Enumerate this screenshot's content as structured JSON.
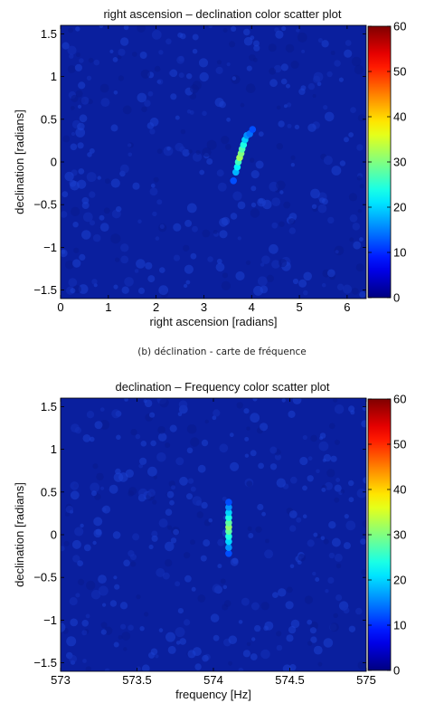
{
  "caption": "(b) déclination - carte de fréquence",
  "colormap": "jet",
  "background_color": "#0a1f9e",
  "chart_data": [
    {
      "type": "scatter",
      "title": "right ascension – declination color scatter plot",
      "xlabel": "right ascension [radians]",
      "ylabel": "declination [radians]",
      "xlim": [
        0,
        6.4
      ],
      "ylim": [
        -1.6,
        1.6
      ],
      "xticks": [
        0,
        1,
        2,
        3,
        4,
        5,
        6
      ],
      "xtick_labels": [
        "0",
        "1",
        "2",
        "3",
        "4",
        "5",
        "6"
      ],
      "yticks": [
        -1.5,
        -1,
        -0.5,
        0,
        0.5,
        1,
        1.5
      ],
      "ytick_labels": [
        "−1.5",
        "−1",
        "−0.5",
        "0",
        "0.5",
        "1",
        "1.5"
      ],
      "colorbar": {
        "range": [
          0,
          60
        ],
        "ticks": [
          0,
          10,
          20,
          30,
          40,
          50,
          60
        ],
        "tick_labels": [
          "0",
          "10",
          "20",
          "30",
          "40",
          "50",
          "60"
        ]
      },
      "points": [
        {
          "x": 3.62,
          "y": -0.22,
          "c": 12
        },
        {
          "x": 3.67,
          "y": -0.12,
          "c": 18
        },
        {
          "x": 3.7,
          "y": -0.06,
          "c": 22
        },
        {
          "x": 3.72,
          "y": 0.0,
          "c": 26
        },
        {
          "x": 3.75,
          "y": 0.05,
          "c": 32
        },
        {
          "x": 3.78,
          "y": 0.1,
          "c": 30
        },
        {
          "x": 3.8,
          "y": 0.15,
          "c": 27
        },
        {
          "x": 3.83,
          "y": 0.2,
          "c": 24
        },
        {
          "x": 3.86,
          "y": 0.26,
          "c": 20
        },
        {
          "x": 3.9,
          "y": 0.31,
          "c": 16
        },
        {
          "x": 3.96,
          "y": 0.33,
          "c": 14
        },
        {
          "x": 4.02,
          "y": 0.38,
          "c": 12
        }
      ]
    },
    {
      "type": "scatter",
      "title": "declination – Frequency color scatter plot",
      "xlabel": "frequency [Hz]",
      "ylabel": "declination [radians]",
      "xlim": [
        573,
        575
      ],
      "ylim": [
        -1.6,
        1.6
      ],
      "xticks": [
        573,
        573.5,
        574,
        574.5,
        575
      ],
      "xtick_labels": [
        "573",
        "573.5",
        "574",
        "574.5",
        "575"
      ],
      "yticks": [
        -1.5,
        -1,
        -0.5,
        0,
        0.5,
        1,
        1.5
      ],
      "ytick_labels": [
        "−1.5",
        "−1",
        "−0.5",
        "0",
        "0.5",
        "1",
        "1.5"
      ],
      "colorbar": {
        "range": [
          0,
          60
        ],
        "ticks": [
          0,
          10,
          20,
          30,
          40,
          50,
          60
        ],
        "tick_labels": [
          "0",
          "10",
          "20",
          "30",
          "40",
          "50",
          "60"
        ]
      },
      "points": [
        {
          "x": 574.1,
          "y": -0.22,
          "c": 12
        },
        {
          "x": 574.1,
          "y": -0.15,
          "c": 16
        },
        {
          "x": 574.1,
          "y": -0.08,
          "c": 20
        },
        {
          "x": 574.1,
          "y": -0.02,
          "c": 24
        },
        {
          "x": 574.1,
          "y": 0.04,
          "c": 28
        },
        {
          "x": 574.1,
          "y": 0.09,
          "c": 31
        },
        {
          "x": 574.1,
          "y": 0.14,
          "c": 28
        },
        {
          "x": 574.1,
          "y": 0.2,
          "c": 24
        },
        {
          "x": 574.1,
          "y": 0.26,
          "c": 20
        },
        {
          "x": 574.1,
          "y": 0.32,
          "c": 16
        },
        {
          "x": 574.1,
          "y": 0.38,
          "c": 12
        }
      ]
    }
  ]
}
